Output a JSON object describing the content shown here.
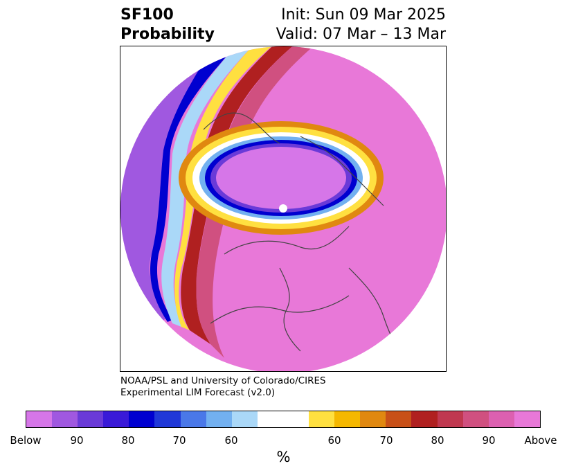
{
  "title": {
    "product": "SF100",
    "kind": "Probability",
    "init": "Init: Sun 09 Mar 2025",
    "valid": "Valid: 07 Mar – 13 Mar"
  },
  "credit": {
    "line1": "NOAA/PSL and University of Colorado/CIRES",
    "line2": "Experimental LIM Forecast (v2.0)"
  },
  "colorbar": {
    "colors": [
      "#d676e8",
      "#a058e0",
      "#6a3ad8",
      "#3a1ad8",
      "#0000d0",
      "#2038d8",
      "#4a78e8",
      "#72b0f0",
      "#aad8f8",
      "#ffffff",
      "#ffffff",
      "#ffe040",
      "#f5b800",
      "#e08810",
      "#c85018",
      "#b02020",
      "#c03850",
      "#d05080",
      "#dc60b0",
      "#e878d8"
    ],
    "ticks": [
      "Below",
      "90",
      "80",
      "70",
      "60",
      "60",
      "70",
      "80",
      "90",
      "Above"
    ],
    "unit": "%"
  },
  "map": {
    "projection": "north-polar-stereographic",
    "background_color": "#e878d8",
    "below_center_color": "#d676e8"
  }
}
